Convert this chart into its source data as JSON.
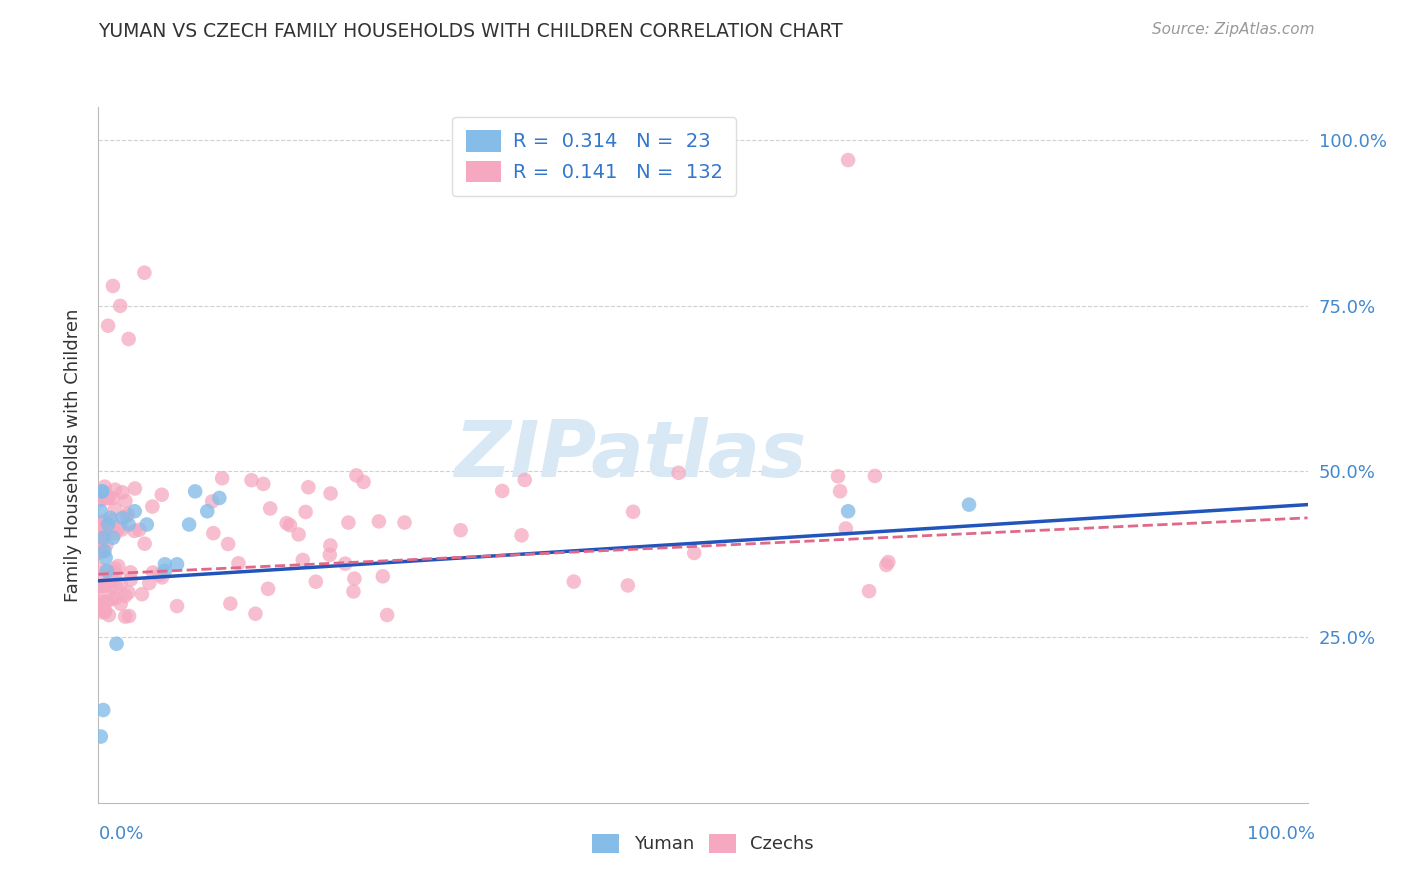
{
  "title": "YUMAN VS CZECH FAMILY HOUSEHOLDS WITH CHILDREN CORRELATION CHART",
  "source": "Source: ZipAtlas.com",
  "ylabel": "Family Households with Children",
  "yuman_R": 0.314,
  "yuman_N": 23,
  "czech_R": 0.141,
  "czech_N": 132,
  "yuman_color": "#85bce8",
  "czech_color": "#f5a8c0",
  "yuman_line_color": "#2255bb",
  "czech_line_color": "#e06888",
  "background_color": "#ffffff",
  "grid_color": "#cccccc",
  "title_color": "#333333",
  "axis_label_color": "#4488cc",
  "legend_R_color": "#3377cc",
  "watermark_color": "#d8e8f5",
  "watermark": "ZIPatlas",
  "yuman_intercept": 0.335,
  "yuman_slope": 0.115,
  "czech_intercept": 0.345,
  "czech_slope": 0.085,
  "seed": 42
}
